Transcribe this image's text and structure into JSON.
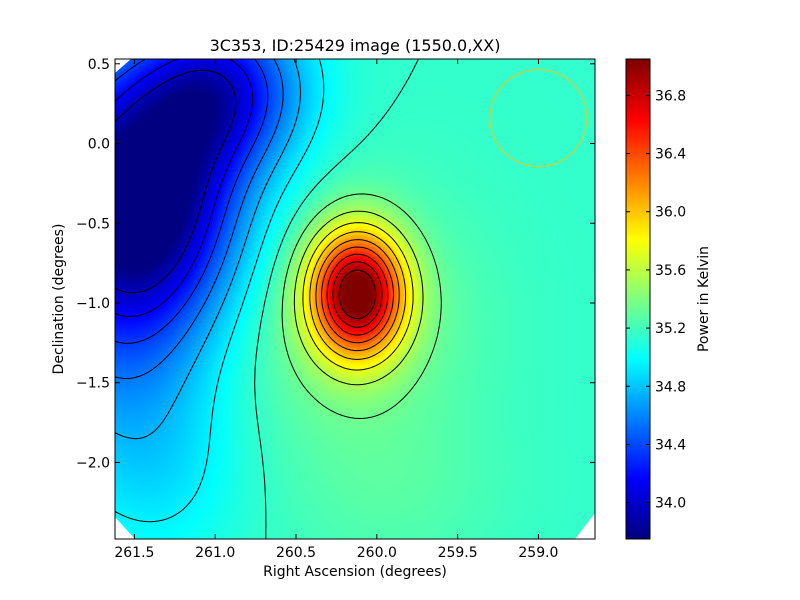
{
  "chart_data": {
    "type": "heatmap",
    "title": "3C353, ID:25429 image (1550.0,XX)",
    "xlabel": "Right Ascension (degrees)",
    "ylabel": "Declination (degrees)",
    "colorbar_label": "Power in Kelvin",
    "xlim": [
      261.62,
      258.65
    ],
    "ylim": [
      -2.48,
      0.53
    ],
    "x_ticks": [
      {
        "value": 261.5,
        "label": "261.5"
      },
      {
        "value": 261.0,
        "label": "261.0"
      },
      {
        "value": 260.5,
        "label": "260.5"
      },
      {
        "value": 260.0,
        "label": "260.0"
      },
      {
        "value": 259.5,
        "label": "259.5"
      },
      {
        "value": 259.0,
        "label": "259.0"
      }
    ],
    "y_ticks": [
      {
        "value": 0.5,
        "label": "0.5"
      },
      {
        "value": 0.0,
        "label": "0.0"
      },
      {
        "value": -0.5,
        "label": "−0.5"
      },
      {
        "value": -1.0,
        "label": "−1.0"
      },
      {
        "value": -1.5,
        "label": "−1.5"
      },
      {
        "value": -2.0,
        "label": "−2.0"
      }
    ],
    "colorbar_range": [
      33.75,
      37.05
    ],
    "colorbar_ticks": [
      {
        "value": 34.0,
        "label": "34.0"
      },
      {
        "value": 34.4,
        "label": "34.4"
      },
      {
        "value": 34.8,
        "label": "34.8"
      },
      {
        "value": 35.2,
        "label": "35.2"
      },
      {
        "value": 35.6,
        "label": "35.6"
      },
      {
        "value": 36.0,
        "label": "36.0"
      },
      {
        "value": 36.4,
        "label": "36.4"
      },
      {
        "value": 36.8,
        "label": "36.8"
      }
    ],
    "colormap": "jet",
    "features": [
      {
        "type": "hot-spot",
        "ra": 260.12,
        "dec": -0.94,
        "peak": 37.0
      },
      {
        "type": "cold-region",
        "ra": 261.6,
        "dec": -0.35,
        "min": 33.8
      },
      {
        "type": "beam-circle",
        "ra": 259.0,
        "dec": 0.16,
        "radius_deg": 0.3,
        "color": "#c8d23c"
      }
    ]
  }
}
